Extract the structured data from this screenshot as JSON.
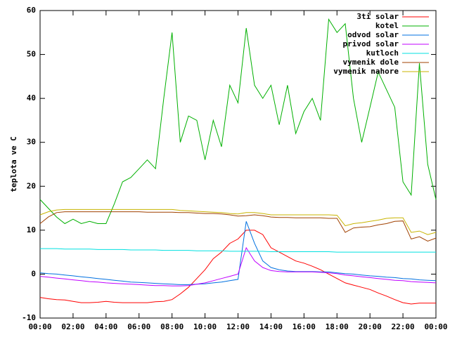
{
  "chart_data": {
    "type": "line",
    "y_label": "teplota ve C",
    "legend": "top-right",
    "grid": false,
    "xlim": [
      0,
      24
    ],
    "ylim": [
      -10,
      60
    ],
    "xticks": [
      {
        "value": 0,
        "label": "00:00"
      },
      {
        "value": 2,
        "label": "02:00"
      },
      {
        "value": 4,
        "label": "04:00"
      },
      {
        "value": 6,
        "label": "06:00"
      },
      {
        "value": 8,
        "label": "08:00"
      },
      {
        "value": 10,
        "label": "10:00"
      },
      {
        "value": 12,
        "label": "12:00"
      },
      {
        "value": 14,
        "label": "14:00"
      },
      {
        "value": 16,
        "label": "16:00"
      },
      {
        "value": 18,
        "label": "18:00"
      },
      {
        "value": 20,
        "label": "20:00"
      },
      {
        "value": 22,
        "label": "22:00"
      },
      {
        "value": 24,
        "label": "00:00"
      }
    ],
    "yticks": [
      -10,
      0,
      10,
      20,
      30,
      40,
      50,
      60
    ],
    "x": [
      0,
      0.5,
      1,
      1.5,
      2,
      2.5,
      3,
      3.5,
      4,
      4.5,
      5,
      5.5,
      6,
      6.5,
      7,
      7.5,
      8,
      8.5,
      9,
      9.5,
      10,
      10.5,
      11,
      11.5,
      12,
      12.5,
      13,
      13.5,
      14,
      14.5,
      15,
      15.5,
      16,
      16.5,
      17,
      17.5,
      18,
      18.5,
      19,
      19.5,
      20,
      20.5,
      21,
      21.5,
      22,
      22.5,
      23,
      23.5,
      24
    ],
    "series": [
      {
        "name": "3ti solar",
        "color": "#ff0000",
        "values": [
          -5.3,
          -5.6,
          -5.8,
          -5.9,
          -6.2,
          -6.5,
          -6.5,
          -6.4,
          -6.2,
          -6.4,
          -6.5,
          -6.5,
          -6.5,
          -6.5,
          -6.3,
          -6.2,
          -5.8,
          -4.5,
          -3,
          -1,
          1,
          3.5,
          5,
          7,
          8,
          10,
          10,
          9,
          6,
          5,
          4,
          3,
          2.5,
          1.8,
          1,
          0,
          -1,
          -2,
          -2.5,
          -3,
          -3.5,
          -4.3,
          -5,
          -5.8,
          -6.5,
          -6.8,
          -6.6,
          -6.6,
          -6.6
        ]
      },
      {
        "name": "kotel",
        "color": "#00b000",
        "values": [
          17,
          15,
          13,
          11.5,
          12.5,
          11.5,
          12,
          11.5,
          11.5,
          16,
          21,
          22,
          24,
          26,
          24,
          40,
          55,
          30,
          36,
          35,
          26,
          35,
          29,
          43,
          39,
          56,
          43,
          40,
          43,
          34,
          43,
          32,
          37,
          40,
          35,
          58,
          55,
          57,
          40,
          30,
          38,
          46,
          42,
          38,
          21,
          18,
          48,
          25,
          17
        ]
      },
      {
        "name": "odvod solar",
        "color": "#0070e0",
        "values": [
          0.3,
          0.1,
          0,
          -0.2,
          -0.4,
          -0.6,
          -0.8,
          -1,
          -1.2,
          -1.4,
          -1.6,
          -1.8,
          -1.9,
          -2,
          -2.1,
          -2.2,
          -2.3,
          -2.4,
          -2.4,
          -2.3,
          -2.2,
          -2,
          -1.8,
          -1.5,
          -1.2,
          12,
          7,
          3,
          1.5,
          1,
          0.7,
          0.6,
          0.6,
          0.6,
          0.5,
          0.5,
          0.3,
          0.1,
          0,
          -0.2,
          -0.4,
          -0.5,
          -0.7,
          -0.8,
          -1,
          -1.1,
          -1.3,
          -1.4,
          -1.5
        ]
      },
      {
        "name": "privod solar",
        "color": "#c000ff",
        "values": [
          -0.5,
          -0.7,
          -0.9,
          -1.1,
          -1.3,
          -1.5,
          -1.7,
          -1.8,
          -2,
          -2.1,
          -2.2,
          -2.3,
          -2.4,
          -2.5,
          -2.6,
          -2.6,
          -2.7,
          -2.7,
          -2.6,
          -2.3,
          -2,
          -1.5,
          -1,
          -0.5,
          0,
          6,
          3,
          1.5,
          0.8,
          0.6,
          0.5,
          0.5,
          0.5,
          0.5,
          0.4,
          0.3,
          0.1,
          -0.2,
          -0.4,
          -0.6,
          -0.8,
          -1,
          -1.2,
          -1.4,
          -1.5,
          -1.7,
          -1.8,
          -1.9,
          -2
        ]
      },
      {
        "name": "kutloch",
        "color": "#00e0e0",
        "values": [
          5.8,
          5.8,
          5.8,
          5.7,
          5.7,
          5.7,
          5.7,
          5.6,
          5.6,
          5.6,
          5.6,
          5.5,
          5.5,
          5.5,
          5.5,
          5.4,
          5.4,
          5.4,
          5.4,
          5.3,
          5.3,
          5.3,
          5.3,
          5.2,
          5.2,
          5.2,
          5.2,
          5.2,
          5.1,
          5.1,
          5.1,
          5.1,
          5.1,
          5.1,
          5.1,
          5.1,
          5,
          5,
          5,
          5,
          5,
          5,
          5,
          5,
          5,
          5,
          5,
          5,
          5
        ]
      },
      {
        "name": "vymenik dole",
        "color": "#a04000",
        "values": [
          11.5,
          13,
          14,
          14.2,
          14.2,
          14.2,
          14.2,
          14.2,
          14.2,
          14.2,
          14.2,
          14.2,
          14.2,
          14.1,
          14.1,
          14.1,
          14.1,
          14,
          14,
          13.9,
          13.8,
          13.8,
          13.7,
          13.5,
          13.2,
          13.3,
          13.5,
          13.3,
          13,
          12.9,
          12.9,
          12.8,
          12.8,
          12.8,
          12.8,
          12.7,
          12.7,
          9.5,
          10.5,
          10.7,
          10.8,
          11.2,
          11.5,
          12,
          12.1,
          8,
          8.5,
          7.5,
          8.2
        ]
      },
      {
        "name": "vymenik nahore",
        "color": "#c8b400",
        "values": [
          13.5,
          14.2,
          14.6,
          14.7,
          14.7,
          14.7,
          14.7,
          14.7,
          14.7,
          14.7,
          14.7,
          14.7,
          14.7,
          14.7,
          14.7,
          14.7,
          14.7,
          14.5,
          14.4,
          14.3,
          14.2,
          14.1,
          14,
          13.8,
          13.7,
          14,
          14,
          13.8,
          13.5,
          13.5,
          13.5,
          13.5,
          13.5,
          13.5,
          13.5,
          13.5,
          13.4,
          11,
          11.5,
          11.7,
          12,
          12.3,
          12.7,
          12.8,
          12.8,
          9.5,
          9.8,
          9,
          9.5
        ]
      }
    ]
  }
}
